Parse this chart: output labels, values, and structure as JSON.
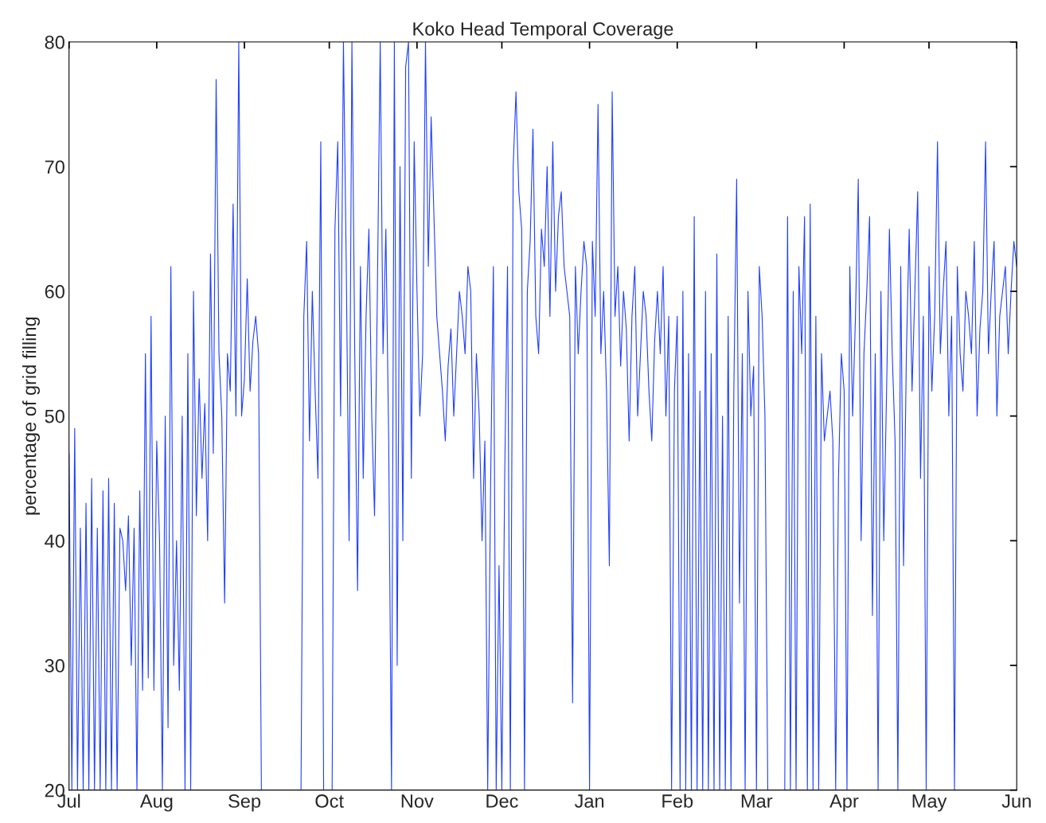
{
  "chart_data": {
    "type": "line",
    "title": "Koko Head Temporal Coverage",
    "ylabel": "percentage of grid filling",
    "ylim": [
      20,
      80
    ],
    "yticks": [
      20,
      30,
      40,
      50,
      60,
      70,
      80
    ],
    "grid": false,
    "legend": false,
    "categories": [
      "Jul",
      null,
      null,
      null,
      null,
      null,
      null,
      null,
      null,
      null,
      null,
      null,
      null,
      null,
      null,
      null,
      null,
      null,
      null,
      null,
      null,
      null,
      null,
      null,
      null,
      null,
      null,
      null,
      null,
      null,
      null,
      "Aug",
      null,
      null,
      null,
      null,
      null,
      null,
      null,
      null,
      null,
      null,
      null,
      null,
      null,
      null,
      null,
      null,
      null,
      null,
      null,
      null,
      null,
      null,
      null,
      null,
      null,
      null,
      null,
      null,
      null,
      null,
      "Sep",
      null,
      null,
      null,
      null,
      null,
      null,
      null,
      null,
      null,
      null,
      null,
      null,
      null,
      null,
      null,
      null,
      null,
      null,
      null,
      null,
      null,
      null,
      null,
      null,
      null,
      null,
      null,
      null,
      null,
      "Oct",
      null,
      null,
      null,
      null,
      null,
      null,
      null,
      null,
      null,
      null,
      null,
      null,
      null,
      null,
      null,
      null,
      null,
      null,
      null,
      null,
      null,
      null,
      null,
      null,
      null,
      null,
      null,
      null,
      null,
      null,
      "Nov",
      null,
      null,
      null,
      null,
      null,
      null,
      null,
      null,
      null,
      null,
      null,
      null,
      null,
      null,
      null,
      null,
      null,
      null,
      null,
      null,
      null,
      null,
      null,
      null,
      null,
      null,
      null,
      null,
      null,
      "Dec",
      null,
      null,
      null,
      null,
      null,
      null,
      null,
      null,
      null,
      null,
      null,
      null,
      null,
      null,
      null,
      null,
      null,
      null,
      null,
      null,
      null,
      null,
      null,
      null,
      null,
      null,
      null,
      null,
      null,
      null,
      "Jan",
      null,
      null,
      null,
      null,
      null,
      null,
      null,
      null,
      null,
      null,
      null,
      null,
      null,
      null,
      null,
      null,
      null,
      null,
      null,
      null,
      null,
      null,
      null,
      null,
      null,
      null,
      null,
      null,
      null,
      null,
      "Feb",
      null,
      null,
      null,
      null,
      null,
      null,
      null,
      null,
      null,
      null,
      null,
      null,
      null,
      null,
      null,
      null,
      null,
      null,
      null,
      null,
      null,
      null,
      null,
      null,
      null,
      null,
      null,
      "Mar",
      null,
      null,
      null,
      null,
      null,
      null,
      null,
      null,
      null,
      null,
      null,
      null,
      null,
      null,
      null,
      null,
      null,
      null,
      null,
      null,
      null,
      null,
      null,
      null,
      null,
      null,
      null,
      null,
      null,
      null,
      "Apr",
      null,
      null,
      null,
      null,
      null,
      null,
      null,
      null,
      null,
      null,
      null,
      null,
      null,
      null,
      null,
      null,
      null,
      null,
      null,
      null,
      null,
      null,
      null,
      null,
      null,
      null,
      null,
      null,
      null,
      "May",
      null,
      null,
      null,
      null,
      null,
      null,
      null,
      null,
      null,
      null,
      null,
      null,
      null,
      null,
      null,
      null,
      null,
      null,
      null,
      null,
      null,
      null,
      null,
      null,
      null,
      null,
      null,
      null,
      null,
      null,
      "Jun"
    ],
    "series": [
      {
        "color": "#1f3fff",
        "values": [
          47,
          20,
          49,
          20,
          41,
          20,
          43,
          20,
          45,
          20,
          41,
          20,
          44,
          20,
          45,
          20,
          43,
          20,
          41,
          40,
          36,
          42,
          30,
          41,
          20,
          44,
          28,
          55,
          29,
          58,
          28,
          48,
          40,
          20,
          50,
          25,
          62,
          30,
          40,
          28,
          50,
          20,
          55,
          20,
          60,
          42,
          53,
          45,
          51,
          40,
          63,
          47,
          77,
          55,
          50,
          35,
          55,
          52,
          67,
          50,
          80,
          50,
          53,
          61,
          52,
          56,
          58,
          55,
          20,
          null,
          null,
          null,
          null,
          null,
          null,
          null,
          null,
          null,
          null,
          null,
          null,
          null,
          20,
          58,
          64,
          48,
          60,
          52,
          45,
          72,
          20,
          null,
          null,
          20,
          65,
          72,
          50,
          80,
          62,
          40,
          80,
          55,
          36,
          62,
          45,
          58,
          65,
          50,
          42,
          60,
          80,
          55,
          65,
          48,
          20,
          80,
          30,
          70,
          40,
          78,
          80,
          45,
          72,
          60,
          50,
          55,
          80,
          62,
          74,
          66,
          58,
          55,
          52,
          48,
          54,
          57,
          50,
          55,
          60,
          58,
          55,
          62,
          60,
          45,
          55,
          50,
          40,
          48,
          20,
          44,
          62,
          20,
          38,
          20,
          45,
          62,
          20,
          70,
          76,
          68,
          65,
          20,
          60,
          64,
          73,
          58,
          55,
          65,
          62,
          70,
          58,
          72,
          60,
          66,
          68,
          62,
          60,
          58,
          27,
          62,
          55,
          60,
          64,
          62,
          20,
          64,
          58,
          75,
          55,
          60,
          52,
          38,
          76,
          58,
          62,
          54,
          60,
          57,
          48,
          58,
          62,
          50,
          55,
          60,
          58,
          52,
          48,
          56,
          60,
          55,
          62,
          50,
          58,
          20,
          52,
          58,
          20,
          60,
          20,
          55,
          20,
          66,
          20,
          52,
          20,
          60,
          20,
          55,
          20,
          63,
          20,
          50,
          20,
          58,
          20,
          52,
          69,
          35,
          55,
          20,
          60,
          50,
          54,
          20,
          62,
          58,
          50,
          20,
          null,
          null,
          null,
          null,
          null,
          20,
          66,
          20,
          60,
          20,
          62,
          55,
          66,
          20,
          67,
          20,
          58,
          20,
          55,
          48,
          50,
          52,
          48,
          20,
          45,
          55,
          52,
          20,
          62,
          50,
          58,
          69,
          40,
          55,
          60,
          66,
          34,
          55,
          20,
          60,
          40,
          52,
          65,
          55,
          48,
          20,
          62,
          38,
          55,
          65,
          52,
          60,
          68,
          45,
          58,
          20,
          62,
          52,
          58,
          72,
          55,
          60,
          64,
          50,
          58,
          20,
          62,
          55,
          52,
          60,
          58,
          55,
          64,
          50,
          57,
          60,
          72,
          55,
          60,
          64,
          50,
          58,
          60,
          62,
          55,
          60,
          64,
          62
        ]
      }
    ]
  }
}
